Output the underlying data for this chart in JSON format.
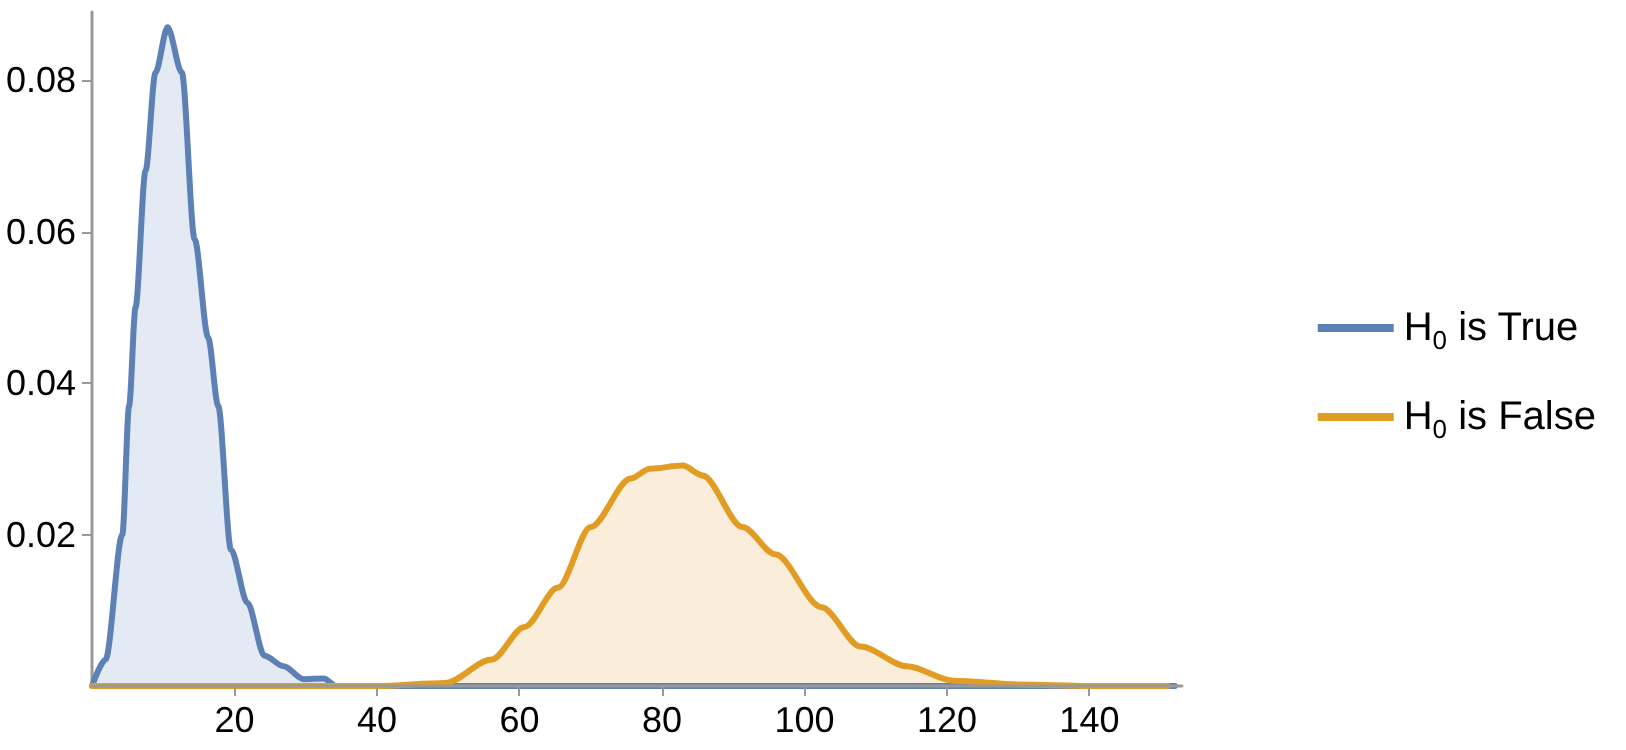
{
  "chart_data": {
    "type": "area",
    "xlim": [
      0,
      153
    ],
    "ylim": [
      0,
      0.089
    ],
    "xticks": [
      20,
      40,
      60,
      80,
      100,
      120,
      140
    ],
    "yticks": [
      0.02,
      0.04,
      0.06,
      0.08
    ],
    "grid": false,
    "legend": "right",
    "marker": "none",
    "series": [
      {
        "name": "H$_{0}$ is True",
        "color": "#5e81b5",
        "x": [
          0,
          1.9,
          4.25,
          5.2,
          6.1,
          7.5,
          8.9,
          10.6,
          12.6,
          14.4,
          16.3,
          17.7,
          19.5,
          21.8,
          24.2,
          26.9,
          29.7,
          32.5,
          34.3,
          40,
          60,
          80,
          100,
          120,
          140,
          152
        ],
        "values": [
          0,
          0.0035,
          0.02,
          0.037,
          0.05,
          0.068,
          0.081,
          0.087,
          0.081,
          0.059,
          0.046,
          0.037,
          0.018,
          0.011,
          0.004,
          0.0026,
          0.0009,
          0.001,
          0,
          0,
          0,
          0,
          0,
          0,
          0,
          0
        ]
      },
      {
        "name": "H$_{0}$ is False",
        "color": "#e19c24",
        "x": [
          0,
          20,
          40,
          49.6,
          56.1,
          60.7,
          65.4,
          70,
          75.6,
          78.3,
          82.9,
          85.7,
          91.3,
          95.9,
          102.4,
          107.9,
          114.4,
          120.9,
          130,
          140,
          151
        ],
        "values": [
          0,
          0,
          0,
          0.0004,
          0.0035,
          0.0078,
          0.013,
          0.021,
          0.0274,
          0.0287,
          0.0291,
          0.0278,
          0.021,
          0.0174,
          0.0104,
          0.0052,
          0.0026,
          0.0007,
          0.0002,
          0,
          0
        ]
      }
    ]
  }
}
